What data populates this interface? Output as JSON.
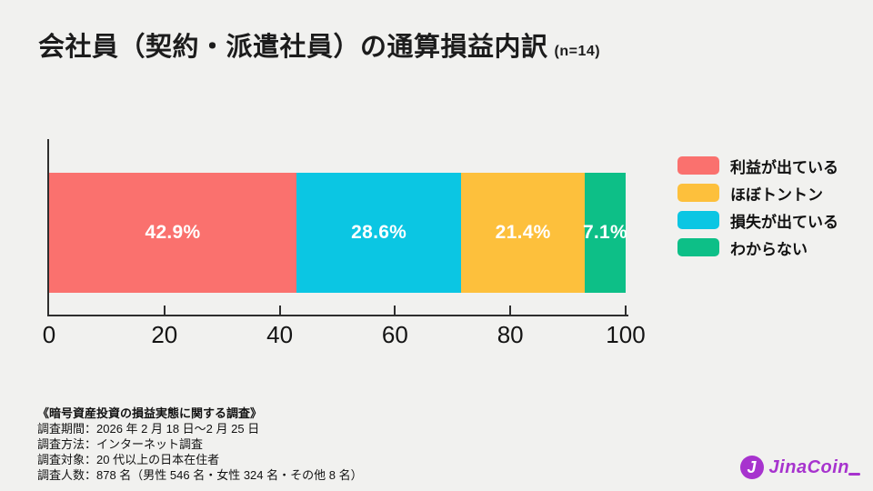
{
  "page": {
    "background": "#F1F1EF"
  },
  "header": {
    "title": "会社員（契約・派遣社員）の通算損益内訳",
    "sample_note": "(n=14)"
  },
  "chart_data": {
    "type": "bar",
    "variant": "horizontal-stacked-percentage",
    "title": "会社員（契約・派遣社員）の通算損益内訳",
    "sample_size": 14,
    "xlim": [
      0,
      100
    ],
    "x_ticks": [
      0,
      20,
      40,
      60,
      80,
      100
    ],
    "grid": false,
    "legend_position": "right",
    "value_label_color": "#ffffff",
    "axis_color": "#2e2e2e",
    "segments": [
      {
        "label": "利益が出ている",
        "value": 42.9,
        "display": "42.9%",
        "color": "#FA716E"
      },
      {
        "label": "損失が出ている",
        "value": 28.6,
        "display": "28.6%",
        "color": "#0BC6E3"
      },
      {
        "label": "ほぼトントン",
        "value": 21.4,
        "display": "21.4%",
        "color": "#FDC03C"
      },
      {
        "label": "わからない",
        "value": 7.1,
        "display": "7.1%",
        "color": "#0DBF87"
      }
    ],
    "legend": [
      {
        "label": "利益が出ている",
        "color": "#FA716E"
      },
      {
        "label": "ほぼトントン",
        "color": "#FDC03C"
      },
      {
        "label": "損失が出ている",
        "color": "#0BC6E3"
      },
      {
        "label": "わからない",
        "color": "#0DBF87"
      }
    ]
  },
  "footer": {
    "survey_title": "《暗号資産投資の損益実態に関する調査》",
    "lines": [
      "調査期間：2026 年 2 月 18 日〜2 月 25 日",
      "調査方法：インターネット調査",
      "調査対象：20 代以上の日本在住者",
      "調査人数：878 名（男性 546 名・女性 324 名・その他 8 名）"
    ]
  },
  "logo": {
    "icon_letter": "J",
    "text": "JinaCoin",
    "color": "#A733CE"
  }
}
